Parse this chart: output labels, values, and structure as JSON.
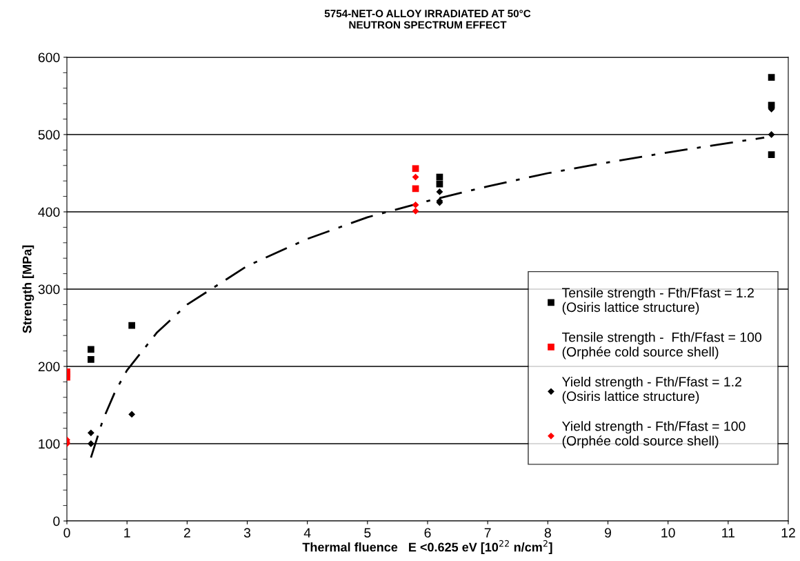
{
  "chart_data": {
    "type": "scatter",
    "title": "5754-NET-O ALLOY IRRADIATED AT 50°C\nNEUTRON SPECTRUM EFFECT",
    "xlabel": "Thermal fluence   E <0.625 eV [10$^{22}$ n/cm$^{2}$]",
    "ylabel": "Strength [MPa]",
    "xlim": [
      0,
      12
    ],
    "xticks": [
      0,
      1,
      2,
      3,
      4,
      5,
      6,
      7,
      8,
      9,
      10,
      11,
      12
    ],
    "ylim": [
      0,
      600
    ],
    "yticks": [
      0,
      100,
      200,
      300,
      400,
      500,
      600
    ],
    "grid": "y",
    "legend": "right",
    "series": [
      {
        "name": "Tensile strength - Fth/Ffast = 1.2\n(Osiris lattice structure)",
        "color": "#000000",
        "marker": "square",
        "x": [
          0.4,
          0.4,
          1.08,
          6.2,
          6.2,
          11.72,
          11.72,
          11.72
        ],
        "values": [
          222,
          209,
          253,
          445,
          436,
          574,
          538,
          474
        ]
      },
      {
        "name": "Tensile strength -  Fth/Ffast = 100\n(Orphée cold source shell)",
        "color": "#ff0000",
        "marker": "square",
        "x": [
          0,
          0,
          0,
          5.8,
          5.8
        ],
        "values": [
          193,
          190,
          186,
          456,
          430
        ]
      },
      {
        "name": "Yield strength - Fth/Ffast = 1.2\n(Osiris lattice structure)",
        "color": "#000000",
        "marker": "diamond",
        "x": [
          0.4,
          0.4,
          1.08,
          6.2,
          6.2,
          6.2,
          11.72,
          11.72
        ],
        "values": [
          114,
          100,
          138,
          426,
          414,
          412,
          500,
          533
        ]
      },
      {
        "name": "Yield strength - Fth/Ffast = 100\n(Orphée cold source shell)",
        "color": "#ff0000",
        "marker": "diamond",
        "x": [
          0,
          0,
          0,
          5.8,
          5.8,
          5.8
        ],
        "values": [
          105,
          102,
          100,
          445,
          409,
          401
        ]
      },
      {
        "type": "line",
        "color": "#000000",
        "marker": "none",
        "line_style": "dashdot",
        "x": [
          0.4,
          0.6,
          0.8,
          1,
          1.5,
          2,
          3,
          4,
          5,
          6,
          7,
          8,
          9,
          10,
          11,
          11.6
        ],
        "values": [
          82,
          131,
          167,
          195,
          244,
          280,
          330,
          365,
          393,
          414,
          433,
          450,
          464,
          477,
          489,
          496
        ]
      }
    ]
  }
}
